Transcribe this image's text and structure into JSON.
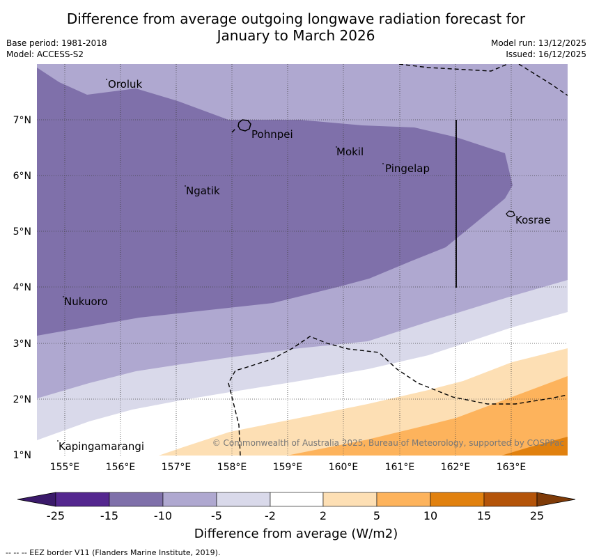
{
  "title": {
    "line1": "Difference from average outgoing longwave radiation forecast for",
    "line2": "January to March 2026"
  },
  "meta": {
    "base_period": "Base period: 1981-2018",
    "model": "Model: ACCESS-S2",
    "model_run": "Model run: 13/12/2025",
    "issued": "Issued: 16/12/2025"
  },
  "axes": {
    "lon_ticks": [
      "155°E",
      "156°E",
      "157°E",
      "158°E",
      "159°E",
      "160°E",
      "161°E",
      "162°E",
      "163°E"
    ],
    "lat_ticks": [
      "7°N",
      "6°N",
      "5°N",
      "4°N",
      "3°N",
      "2°N",
      "1°N"
    ]
  },
  "places": [
    {
      "name": "Oroluk"
    },
    {
      "name": "Pohnpei"
    },
    {
      "name": "Mokil"
    },
    {
      "name": "Pingelap"
    },
    {
      "name": "Ngatik"
    },
    {
      "name": "Kosrae"
    },
    {
      "name": "Nukuoro"
    },
    {
      "name": "Kapingamarangi"
    }
  ],
  "copyright": "© Commonwealth of Australia 2025, Bureau of Meteorology, supported by COSPPac",
  "colorbar": {
    "labels": [
      "-25",
      "-15",
      "-10",
      "-5",
      "-2",
      "2",
      "5",
      "10",
      "15",
      "25"
    ],
    "colors": [
      "#3b1a6b",
      "#54278f",
      "#7f70aa",
      "#afa8d0",
      "#d9d9ea",
      "#ffffff",
      "#fddfb4",
      "#fdb35c",
      "#e1810f",
      "#b45409",
      "#7f3b08"
    ],
    "title": "Difference from average (W/m2)"
  },
  "footnote": "--  --  -- EEZ border V11 (Flanders Marine Institute, 2019).",
  "colors": {
    "purple_dark": "#7f70aa",
    "purple_light": "#afa8d0",
    "lavender": "#d9d9ea",
    "white": "#ffffff",
    "peach": "#fddfb4",
    "orange_light": "#fdb35c",
    "orange": "#e1810f"
  }
}
